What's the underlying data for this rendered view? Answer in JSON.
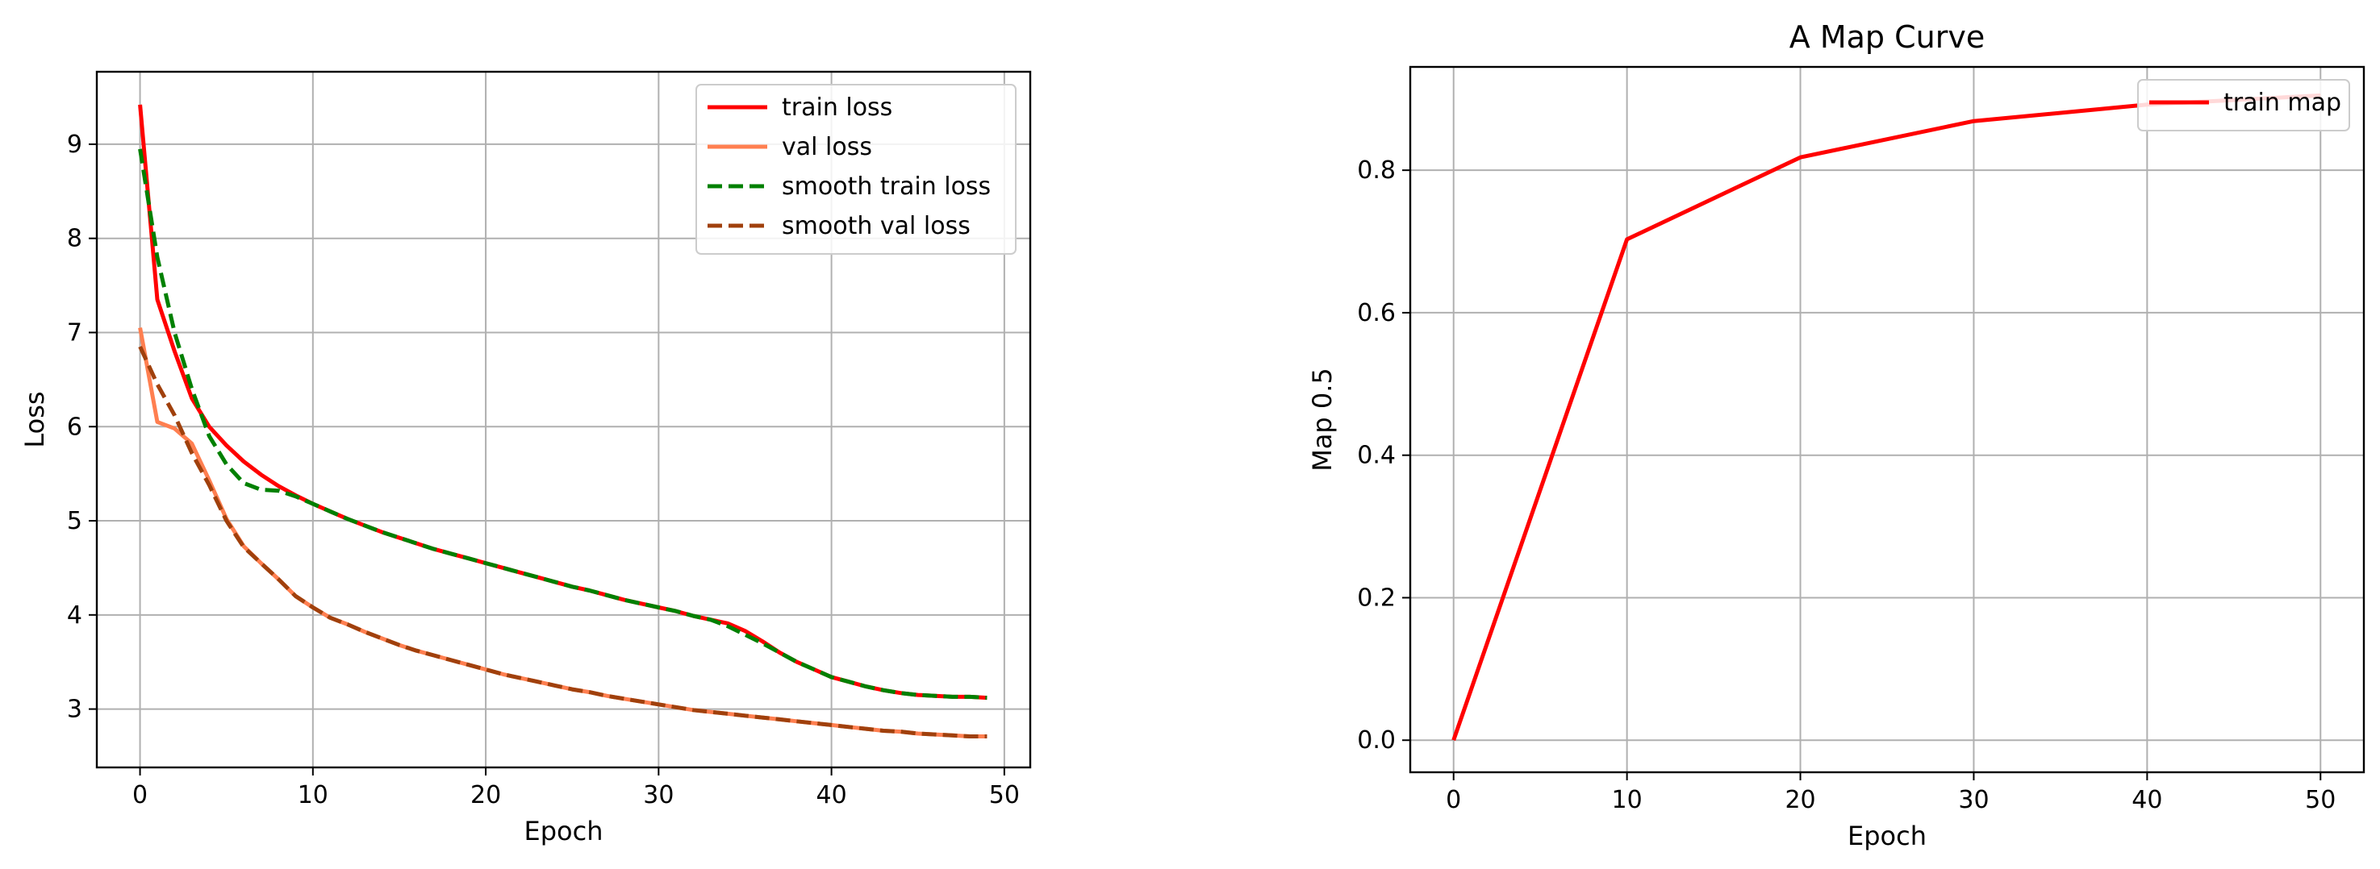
{
  "chart_data": [
    {
      "type": "line",
      "title": "",
      "xlabel": "Epoch",
      "ylabel": "Loss",
      "xlim": [
        -2.5,
        51.5
      ],
      "ylim": [
        2.38,
        9.77
      ],
      "xticks": [
        0,
        10,
        20,
        30,
        40,
        50
      ],
      "yticks": [
        3,
        4,
        5,
        6,
        7,
        8,
        9
      ],
      "grid": true,
      "legend_position": "top-right",
      "x": [
        0,
        1,
        2,
        3,
        4,
        5,
        6,
        7,
        8,
        9,
        10,
        11,
        12,
        13,
        14,
        15,
        16,
        17,
        18,
        19,
        20,
        21,
        22,
        23,
        24,
        25,
        26,
        27,
        28,
        29,
        30,
        31,
        32,
        33,
        34,
        35,
        36,
        37,
        38,
        39,
        40,
        41,
        42,
        43,
        44,
        45,
        46,
        47,
        48,
        49
      ],
      "series": [
        {
          "name": "train loss",
          "color": "#ff0000",
          "style": "solid",
          "values": [
            9.42,
            7.35,
            6.8,
            6.3,
            6.0,
            5.8,
            5.63,
            5.49,
            5.37,
            5.27,
            5.18,
            5.1,
            5.02,
            4.95,
            4.88,
            4.82,
            4.76,
            4.7,
            4.65,
            4.6,
            4.55,
            4.5,
            4.45,
            4.4,
            4.35,
            4.3,
            4.26,
            4.21,
            4.16,
            4.12,
            4.08,
            4.04,
            3.99,
            3.95,
            3.91,
            3.83,
            3.72,
            3.6,
            3.5,
            3.42,
            3.34,
            3.29,
            3.24,
            3.2,
            3.17,
            3.15,
            3.14,
            3.13,
            3.13,
            3.12
          ]
        },
        {
          "name": "val loss",
          "color": "#ff7f50",
          "style": "solid",
          "values": [
            7.05,
            6.05,
            5.98,
            5.82,
            5.43,
            5.02,
            4.73,
            4.55,
            4.38,
            4.2,
            4.08,
            3.97,
            3.9,
            3.82,
            3.75,
            3.68,
            3.62,
            3.57,
            3.52,
            3.47,
            3.42,
            3.37,
            3.33,
            3.29,
            3.25,
            3.21,
            3.18,
            3.14,
            3.11,
            3.08,
            3.05,
            3.02,
            2.99,
            2.97,
            2.95,
            2.93,
            2.91,
            2.89,
            2.87,
            2.85,
            2.83,
            2.81,
            2.79,
            2.77,
            2.76,
            2.74,
            2.73,
            2.72,
            2.71,
            2.71
          ]
        },
        {
          "name": "smooth train loss",
          "color": "#008000",
          "style": "dashed",
          "values": [
            8.95,
            7.8,
            7.0,
            6.4,
            5.9,
            5.6,
            5.4,
            5.33,
            5.32,
            5.26,
            5.18,
            5.1,
            5.02,
            4.95,
            4.88,
            4.82,
            4.76,
            4.7,
            4.65,
            4.6,
            4.55,
            4.5,
            4.45,
            4.4,
            4.35,
            4.3,
            4.26,
            4.21,
            4.16,
            4.12,
            4.08,
            4.04,
            3.99,
            3.95,
            3.88,
            3.79,
            3.7,
            3.6,
            3.5,
            3.42,
            3.34,
            3.29,
            3.24,
            3.2,
            3.17,
            3.15,
            3.14,
            3.13,
            3.13,
            3.12
          ]
        },
        {
          "name": "smooth val loss",
          "color": "#a0400c",
          "style": "dashed",
          "values": [
            6.85,
            6.45,
            6.12,
            5.72,
            5.38,
            5.0,
            4.72,
            4.55,
            4.38,
            4.2,
            4.08,
            3.97,
            3.9,
            3.82,
            3.75,
            3.68,
            3.62,
            3.57,
            3.52,
            3.47,
            3.42,
            3.37,
            3.33,
            3.29,
            3.25,
            3.21,
            3.18,
            3.14,
            3.11,
            3.08,
            3.05,
            3.02,
            2.99,
            2.97,
            2.95,
            2.93,
            2.91,
            2.89,
            2.87,
            2.85,
            2.83,
            2.81,
            2.79,
            2.77,
            2.76,
            2.74,
            2.73,
            2.72,
            2.71,
            2.71
          ]
        }
      ]
    },
    {
      "type": "line",
      "title": "A Map Curve",
      "xlabel": "Epoch",
      "ylabel": "Map 0.5",
      "xlim": [
        -2.5,
        52.5
      ],
      "ylim": [
        -0.045,
        0.945
      ],
      "xticks": [
        0,
        10,
        20,
        30,
        40,
        50
      ],
      "yticks": [
        0.0,
        0.2,
        0.4,
        0.6,
        0.8
      ],
      "ytick_labels": [
        "0.0",
        "0.2",
        "0.4",
        "0.6",
        "0.8"
      ],
      "grid": true,
      "legend_position": "top-right",
      "x": [
        0,
        10,
        20,
        30,
        40,
        50
      ],
      "series": [
        {
          "name": "train map",
          "color": "#ff0000",
          "style": "solid",
          "values": [
            0.0,
            0.703,
            0.818,
            0.869,
            0.892,
            0.905
          ]
        }
      ]
    }
  ]
}
